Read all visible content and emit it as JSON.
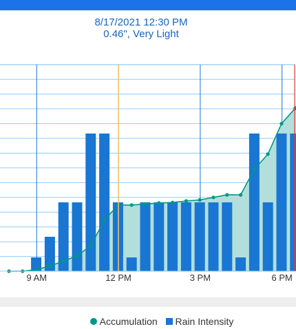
{
  "header": {
    "datetime": "8/17/2021 12:30 PM",
    "summary": "0.46\", Very Light"
  },
  "colors": {
    "topbar": "#1a73e8",
    "header_text": "#1565c0",
    "bar": "#1976d2",
    "area_fill": "#b2dfdb",
    "line": "#009688",
    "grid": "#90caf9",
    "major_grid": "#1976d2",
    "cursor": "#f9c35e",
    "now": "#e53935",
    "band": "#eeeeee",
    "tick_text": "#333333"
  },
  "chart_data": {
    "type": "bar",
    "x_tick_labels": [
      "9 AM",
      "12 PM",
      "3 PM",
      "6 PM"
    ],
    "cursor_time": "12:30 PM",
    "legend": [
      "Accumulation",
      "Rain Intensity"
    ],
    "series": [
      {
        "name": "Rain Intensity",
        "type": "bar",
        "values": [
          0,
          0,
          1,
          2.5,
          5,
          5,
          10,
          10,
          5,
          1,
          5,
          5,
          5,
          5,
          5,
          5,
          5,
          1,
          10,
          5,
          10,
          10,
          10
        ]
      },
      {
        "name": "Accumulation",
        "type": "area",
        "values": [
          0,
          0,
          0.003,
          0.01,
          0.02,
          0.03,
          0.05,
          0.1,
          0.13,
          0.13,
          0.132,
          0.134,
          0.135,
          0.138,
          0.14,
          0.145,
          0.15,
          0.15,
          0.2,
          0.23,
          0.29,
          0.32,
          0.38
        ]
      }
    ],
    "grid": true
  }
}
